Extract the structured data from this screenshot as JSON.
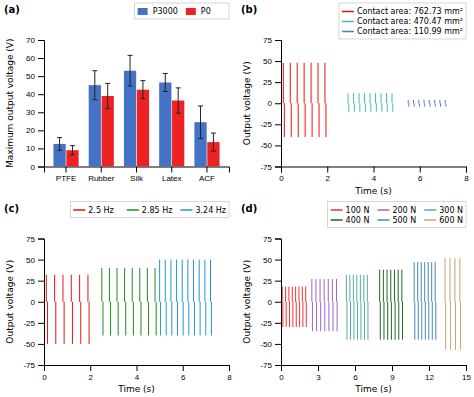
{
  "chart_data": [
    {
      "type": "bar",
      "title": "(a)",
      "categories": [
        "PTFE",
        "Rubber",
        "Silk",
        "Latex",
        "ACF"
      ],
      "series": [
        {
          "name": "P3000",
          "color": "#4472C4",
          "values": [
            12.5,
            45.0,
            53.0,
            46.5,
            24.5
          ],
          "errors": [
            3.5,
            8.0,
            8.5,
            5.0,
            9.0
          ]
        },
        {
          "name": "P0",
          "color": "#EE2222",
          "values": [
            9.0,
            39.0,
            42.5,
            36.5,
            13.5
          ],
          "errors": [
            2.5,
            7.0,
            5.0,
            7.0,
            5.0
          ]
        }
      ],
      "ylabel": "Maximum output voltage (V)",
      "ylim": [
        0,
        70
      ],
      "yticks": [
        0,
        10,
        20,
        30,
        40,
        50,
        60,
        70
      ],
      "legend": "upper right"
    },
    {
      "type": "spike",
      "title": "(b)",
      "xlabel": "Time (s)",
      "ylabel": "Output voltage (V)",
      "xlim": [
        0,
        8
      ],
      "ylim": [
        -75,
        75
      ],
      "xticks": [
        0,
        2,
        4,
        6,
        8
      ],
      "yticks": [
        -75,
        -50,
        -25,
        0,
        25,
        50,
        75
      ],
      "legend": "upper right",
      "series": [
        {
          "name": "Contact area: 762.73 mm²",
          "color": "#EE1111",
          "x": [
            0.1,
            0.145,
            0.4,
            0.445,
            0.7,
            0.745,
            1.0,
            1.045,
            1.3,
            1.345,
            1.6,
            1.645,
            1.9,
            1.945
          ],
          "values": [
            48,
            -40,
            48,
            -40,
            48,
            -40,
            48,
            -40,
            48,
            -40,
            48,
            -40,
            48,
            -40
          ]
        },
        {
          "name": "Contact area: 470.47 mm²",
          "color": "#44BBAA",
          "x": [
            2.9,
            2.935,
            3.1375,
            3.1725,
            3.375,
            3.41,
            3.6125,
            3.6475,
            3.85,
            3.885,
            4.0875,
            4.1225,
            4.325,
            4.36,
            4.5625,
            4.5975,
            4.8,
            4.835
          ],
          "values": [
            12,
            -10,
            12,
            -10,
            12,
            -10,
            12,
            -10,
            12,
            -10,
            12,
            -10,
            12,
            -10,
            12,
            -10,
            12,
            -10
          ]
        },
        {
          "name": "Contact area: 110.99 mm²",
          "color": "#5577CC",
          "x": [
            5.5,
            5.53,
            5.728571428571429,
            5.758571428571429,
            5.957142857142857,
            5.987142857142857,
            6.185714285714286,
            6.215714285714286,
            6.414285714285714,
            6.444285714285714,
            6.642857142857143,
            6.672857142857143,
            6.871428571428571,
            6.901428571428571,
            7.1,
            7.13
          ],
          "values": [
            4,
            -4,
            4,
            -4,
            4,
            -4,
            4,
            -4,
            4,
            -4,
            4,
            -4,
            4,
            -4,
            4,
            -4
          ]
        }
      ]
    },
    {
      "type": "spike",
      "title": "(c)",
      "xlabel": "Time (s)",
      "ylabel": "Output voltage (V)",
      "xlim": [
        0,
        8
      ],
      "ylim": [
        -75,
        75
      ],
      "xticks": [
        0,
        2,
        4,
        6,
        8
      ],
      "yticks": [
        -75,
        -50,
        -25,
        0,
        25,
        50,
        75
      ],
      "legend": "upper right",
      "series": [
        {
          "name": "2.5 Hz",
          "color": "#EE1111",
          "x": [
            0.1,
            0.15,
            0.46,
            0.51,
            0.82,
            0.87,
            1.18,
            1.23,
            1.54,
            1.59,
            1.9,
            1.95
          ],
          "values": [
            32,
            -50,
            32,
            -50,
            32,
            -50,
            32,
            -50,
            32,
            -50,
            32,
            -50
          ]
        },
        {
          "name": "2.85 Hz",
          "color": "#228B22",
          "x": [
            2.5,
            2.55,
            2.8285714285714287,
            2.8785714285714286,
            3.157142857142857,
            3.207142857142857,
            3.4857142857142858,
            3.5357142857142856,
            3.8142857142857145,
            3.8642857142857143,
            4.142857142857143,
            4.192857142857143,
            4.4714285714285715,
            4.521428571428571,
            4.8,
            4.85
          ],
          "values": [
            40,
            -40,
            40,
            -40,
            40,
            -40,
            40,
            -40,
            40,
            -40,
            40,
            -40,
            40,
            -40,
            40,
            -40
          ]
        },
        {
          "name": "3.24 Hz",
          "color": "#2299CC",
          "x": [
            5.0,
            5.04,
            5.2444444444444445,
            5.284444444444445,
            5.488888888888889,
            5.528888888888889,
            5.733333333333333,
            5.773333333333333,
            5.977777777777778,
            6.017777777777778,
            6.222222222222222,
            6.262222222222222,
            6.466666666666667,
            6.506666666666667,
            6.711111111111111,
            6.751111111111111,
            6.955555555555556,
            6.995555555555556,
            7.2,
            7.24
          ],
          "values": [
            50,
            -40,
            50,
            -40,
            50,
            -40,
            50,
            -40,
            50,
            -40,
            50,
            -40,
            50,
            -40,
            50,
            -40,
            50,
            -40,
            50,
            -40
          ]
        }
      ]
    },
    {
      "type": "spike",
      "title": "(d)",
      "xlabel": "Time (s)",
      "ylabel": "Output voltage (V)",
      "xlim": [
        0,
        15
      ],
      "ylim": [
        -75,
        75
      ],
      "xticks": [
        0,
        3,
        6,
        9,
        12,
        15
      ],
      "yticks": [
        -75,
        -50,
        -25,
        0,
        25,
        50,
        75
      ],
      "legend": "upper right",
      "series": [
        {
          "name": "100 N",
          "color": "#EE3333",
          "x": [
            0.1,
            0.15,
            0.37142857142857144,
            0.42142857142857143,
            0.6428571428571428,
            0.6928571428571428,
            0.9142857142857143,
            0.9642857142857143,
            1.1857142857142857,
            1.2357142857142858,
            1.4571428571428573,
            1.5071428571428571,
            1.7285714285714286,
            1.7785714285714287,
            2.0,
            2.05
          ],
          "values": [
            18,
            -30,
            18,
            -30,
            18,
            -30,
            18,
            -30,
            18,
            -30,
            18,
            -30,
            18,
            -30,
            18,
            -30
          ]
        },
        {
          "name": "200 N",
          "color": "#9966CC",
          "x": [
            2.5,
            2.55,
            2.8333333333333335,
            2.8833333333333333,
            3.1666666666666665,
            3.216666666666667,
            3.5,
            3.55,
            3.8333333333333335,
            3.8833333333333333,
            4.166666666666667,
            4.216666666666667,
            4.5,
            4.55
          ],
          "values": [
            27,
            -35,
            27,
            -35,
            27,
            -35,
            27,
            -35,
            27,
            -35,
            27,
            -35,
            27,
            -35
          ]
        },
        {
          "name": "300 N",
          "color": "#55AAAA",
          "x": [
            5.3,
            5.35,
            5.583333333333333,
            5.633333333333333,
            5.866666666666667,
            5.916666666666667,
            6.15,
            6.2,
            6.433333333333333,
            6.483333333333333,
            6.716666666666667,
            6.766666666666667,
            7.0,
            7.05
          ],
          "values": [
            32,
            -45,
            32,
            -45,
            32,
            -45,
            32,
            -45,
            32,
            -45,
            32,
            -45,
            32,
            -45
          ]
        },
        {
          "name": "400 N",
          "color": "#226622",
          "x": [
            8.0,
            8.05,
            8.3,
            8.35,
            8.6,
            8.65,
            8.9,
            8.95,
            9.2,
            9.25,
            9.5,
            9.55,
            9.8,
            9.85
          ],
          "values": [
            38,
            -45,
            38,
            -45,
            38,
            -45,
            38,
            -45,
            38,
            -45,
            38,
            -45,
            38,
            -45
          ]
        },
        {
          "name": "500 N",
          "color": "#4488BB",
          "x": [
            10.8,
            10.85,
            11.083333333333334,
            11.133333333333333,
            11.366666666666667,
            11.416666666666666,
            11.65,
            11.7,
            11.933333333333334,
            11.983333333333333,
            12.216666666666667,
            12.266666666666667,
            12.5,
            12.55
          ],
          "values": [
            47,
            -45,
            47,
            -45,
            47,
            -45,
            47,
            -45,
            47,
            -45,
            47,
            -45,
            47,
            -45
          ]
        },
        {
          "name": "600 N",
          "color": "#BBAA77",
          "x": [
            13.3,
            13.35,
            13.7,
            13.75,
            14.1,
            14.15,
            14.5,
            14.55
          ],
          "values": [
            52,
            -57,
            52,
            -57,
            52,
            -57,
            52,
            -57
          ]
        }
      ]
    }
  ]
}
